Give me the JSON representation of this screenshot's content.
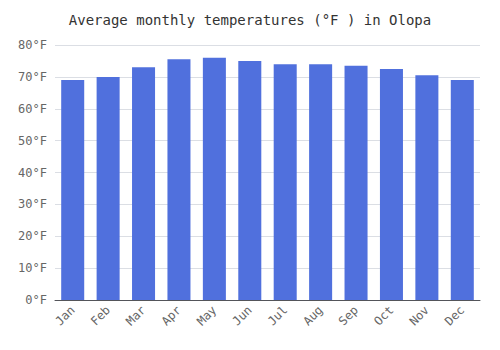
{
  "chart_data": {
    "type": "bar",
    "title": "Average monthly temperatures (°F ) in Olopa",
    "categories": [
      "Jan",
      "Feb",
      "Mar",
      "Apr",
      "May",
      "Jun",
      "Jul",
      "Aug",
      "Sep",
      "Oct",
      "Nov",
      "Dec"
    ],
    "values": [
      69,
      70,
      73,
      75.5,
      76,
      75,
      74,
      74,
      73.5,
      72.5,
      70.5,
      69
    ],
    "ylim": [
      0,
      80
    ],
    "yticks": [
      {
        "value": 0,
        "label": "0°F"
      },
      {
        "value": 10,
        "label": "10°F"
      },
      {
        "value": 20,
        "label": "20°F"
      },
      {
        "value": 30,
        "label": "30°F"
      },
      {
        "value": 40,
        "label": "40°F"
      },
      {
        "value": 50,
        "label": "50°F"
      },
      {
        "value": 60,
        "label": "60°F"
      },
      {
        "value": 70,
        "label": "70°F"
      },
      {
        "value": 80,
        "label": "80°F"
      }
    ],
    "grid": true
  }
}
